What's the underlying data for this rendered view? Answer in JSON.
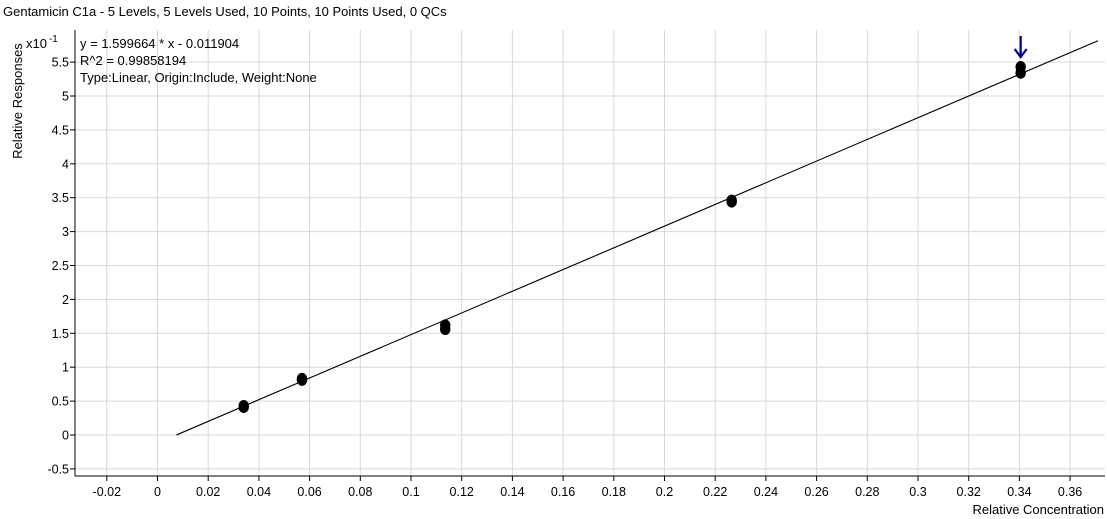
{
  "chart_data": {
    "type": "scatter",
    "title": "Gentamicin C1a - 5 Levels, 5 Levels Used, 10 Points, 10 Points Used, 0 QCs",
    "equation": "y = 1.599664 * x  - 0.011904",
    "r_squared": "R^2 = 0.99858194",
    "fit_info": "Type:Linear, Origin:Include, Weight:None",
    "xlabel": "Relative Concentration",
    "ylabel": "Relative Responses",
    "y_multiplier": "x10",
    "y_exponent": "-1",
    "xlim": [
      -0.035,
      0.372
    ],
    "ylim": [
      -0.5,
      5.8
    ],
    "x_ticks": [
      -0.02,
      0,
      0.02,
      0.04,
      0.06,
      0.08,
      0.1,
      0.12,
      0.14,
      0.16,
      0.18,
      0.2,
      0.22,
      0.24,
      0.26,
      0.28,
      0.3,
      0.32,
      0.34,
      0.36
    ],
    "x_tick_labels": [
      "-0.02",
      "0",
      "0.02",
      "0.04",
      "0.06",
      "0.08",
      "0.1",
      "0.12",
      "0.14",
      "0.16",
      "0.18",
      "0.2",
      "0.22",
      "0.24",
      "0.26",
      "0.28",
      "0.3",
      "0.32",
      "0.34",
      "0.36"
    ],
    "y_ticks": [
      -0.5,
      0,
      0.5,
      1,
      1.5,
      2,
      2.5,
      3,
      3.5,
      4,
      4.5,
      5,
      5.5
    ],
    "y_tick_labels": [
      "-0.5",
      "0",
      "0.5",
      "1",
      "1.5",
      "2",
      "2.5",
      "3",
      "3.5",
      "4",
      "4.5",
      "5",
      "5.5"
    ],
    "grid": true,
    "points": [
      {
        "x": 0.034,
        "y": 0.41
      },
      {
        "x": 0.034,
        "y": 0.43
      },
      {
        "x": 0.057,
        "y": 0.81
      },
      {
        "x": 0.057,
        "y": 0.83
      },
      {
        "x": 0.1135,
        "y": 1.56
      },
      {
        "x": 0.1135,
        "y": 1.62
      },
      {
        "x": 0.2265,
        "y": 3.44
      },
      {
        "x": 0.2265,
        "y": 3.46
      },
      {
        "x": 0.3405,
        "y": 5.34
      },
      {
        "x": 0.3405,
        "y": 5.43
      }
    ],
    "fit_line": {
      "x_start": 0.0075,
      "x_end": 0.371,
      "slope": 15.99664,
      "intercept": -0.11904
    },
    "marker_arrow_x": 0.3405,
    "colors": {
      "points": "#000000",
      "line": "#000000",
      "grid": "#d8d8d8",
      "arrow": "#00008b"
    }
  }
}
